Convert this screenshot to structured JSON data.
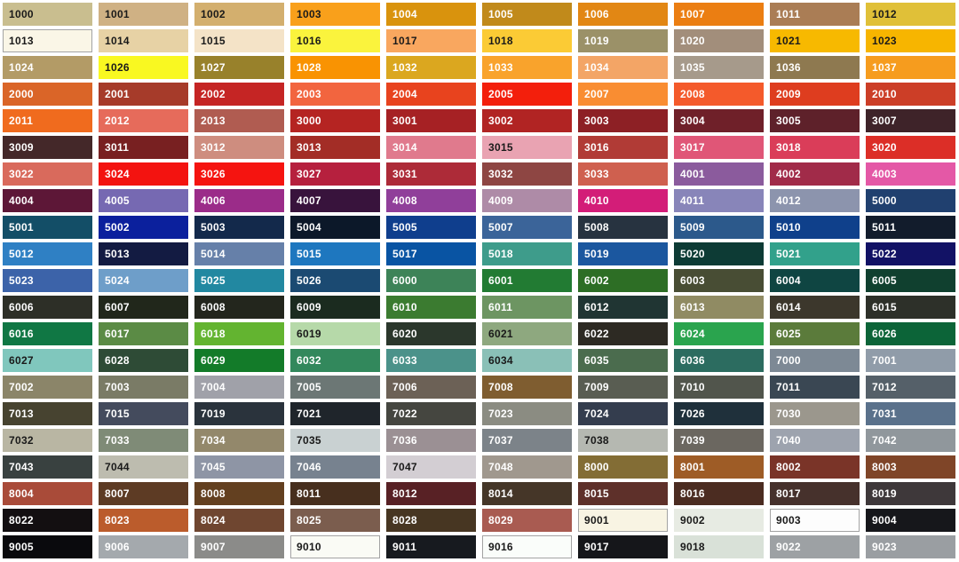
{
  "page": {
    "title": "RAL classic colour chart",
    "background": "#ffffff",
    "text_dark": "#1a1a1a",
    "text_light": "#ffffff",
    "light_swatch_border": "#a3a3a3"
  },
  "chart_data": {
    "type": "table",
    "title": "RAL classic colour swatch grid",
    "columns": 10,
    "rows": 21
  },
  "swatches": [
    {
      "code": "1000",
      "bg": "#C9BE8F",
      "text": "dark"
    },
    {
      "code": "1001",
      "bg": "#CFB184",
      "text": "dark"
    },
    {
      "code": "1002",
      "bg": "#D3AF6E",
      "text": "dark"
    },
    {
      "code": "1003",
      "bg": "#F9A01B",
      "text": "dark"
    },
    {
      "code": "1004",
      "bg": "#D9930D",
      "text": "light"
    },
    {
      "code": "1005",
      "bg": "#C18A1B",
      "text": "light"
    },
    {
      "code": "1006",
      "bg": "#E28714",
      "text": "light"
    },
    {
      "code": "1007",
      "bg": "#EB7E12",
      "text": "light"
    },
    {
      "code": "1011",
      "bg": "#AA7D55",
      "text": "light"
    },
    {
      "code": "1012",
      "bg": "#E0C038",
      "text": "dark"
    },
    {
      "code": "1013",
      "bg": "#FAF6E7",
      "text": "dark",
      "border": true
    },
    {
      "code": "1014",
      "bg": "#E7D2A5",
      "text": "dark"
    },
    {
      "code": "1015",
      "bg": "#F4E3C7",
      "text": "dark"
    },
    {
      "code": "1016",
      "bg": "#FAF33D",
      "text": "dark"
    },
    {
      "code": "1017",
      "bg": "#F9A75F",
      "text": "dark"
    },
    {
      "code": "1018",
      "bg": "#FBCB35",
      "text": "dark"
    },
    {
      "code": "1019",
      "bg": "#9B9168",
      "text": "light"
    },
    {
      "code": "1020",
      "bg": "#A28E7B",
      "text": "light"
    },
    {
      "code": "1021",
      "bg": "#F7B900",
      "text": "dark"
    },
    {
      "code": "1023",
      "bg": "#F7B500",
      "text": "dark"
    },
    {
      "code": "1024",
      "bg": "#B39B66",
      "text": "light"
    },
    {
      "code": "1026",
      "bg": "#F9F821",
      "text": "dark"
    },
    {
      "code": "1027",
      "bg": "#98812B",
      "text": "light"
    },
    {
      "code": "1028",
      "bg": "#F99302",
      "text": "light"
    },
    {
      "code": "1032",
      "bg": "#DBA71F",
      "text": "light"
    },
    {
      "code": "1033",
      "bg": "#F9A32C",
      "text": "light"
    },
    {
      "code": "1034",
      "bg": "#F3A566",
      "text": "light"
    },
    {
      "code": "1035",
      "bg": "#A69A8B",
      "text": "light"
    },
    {
      "code": "1036",
      "bg": "#8E7950",
      "text": "light"
    },
    {
      "code": "1037",
      "bg": "#F69C1E",
      "text": "light"
    },
    {
      "code": "2000",
      "bg": "#DA6528",
      "text": "light"
    },
    {
      "code": "2001",
      "bg": "#A63B2A",
      "text": "light"
    },
    {
      "code": "2002",
      "bg": "#C52524",
      "text": "light"
    },
    {
      "code": "2003",
      "bg": "#F2653F",
      "text": "light"
    },
    {
      "code": "2004",
      "bg": "#E8431E",
      "text": "light"
    },
    {
      "code": "2005",
      "bg": "#F31F0C",
      "text": "light"
    },
    {
      "code": "2007",
      "bg": "#F98D32",
      "text": "light"
    },
    {
      "code": "2008",
      "bg": "#F45A2B",
      "text": "light"
    },
    {
      "code": "2009",
      "bg": "#DE3D1F",
      "text": "light"
    },
    {
      "code": "2010",
      "bg": "#CC3E27",
      "text": "light"
    },
    {
      "code": "2011",
      "bg": "#F06B1E",
      "text": "light"
    },
    {
      "code": "2012",
      "bg": "#E66B5B",
      "text": "light"
    },
    {
      "code": "2013",
      "bg": "#B05C51",
      "text": "light"
    },
    {
      "code": "3000",
      "bg": "#B52422",
      "text": "light"
    },
    {
      "code": "3001",
      "bg": "#A62124",
      "text": "light"
    },
    {
      "code": "3002",
      "bg": "#B12423",
      "text": "light"
    },
    {
      "code": "3003",
      "bg": "#8D2025",
      "text": "light"
    },
    {
      "code": "3004",
      "bg": "#6F2029",
      "text": "light"
    },
    {
      "code": "3005",
      "bg": "#5E212A",
      "text": "light"
    },
    {
      "code": "3007",
      "bg": "#3E2329",
      "text": "light"
    },
    {
      "code": "3009",
      "bg": "#442829",
      "text": "light"
    },
    {
      "code": "3011",
      "bg": "#782021",
      "text": "light"
    },
    {
      "code": "3012",
      "bg": "#CE8D7F",
      "text": "light"
    },
    {
      "code": "3013",
      "bg": "#A32D26",
      "text": "light"
    },
    {
      "code": "3014",
      "bg": "#E07A8D",
      "text": "light"
    },
    {
      "code": "3015",
      "bg": "#E9A3B2",
      "text": "dark"
    },
    {
      "code": "3016",
      "bg": "#B13B36",
      "text": "light"
    },
    {
      "code": "3017",
      "bg": "#E05677",
      "text": "light"
    },
    {
      "code": "3018",
      "bg": "#DA3D59",
      "text": "light"
    },
    {
      "code": "3020",
      "bg": "#DC2E27",
      "text": "light"
    },
    {
      "code": "3022",
      "bg": "#D96A5C",
      "text": "light"
    },
    {
      "code": "3024",
      "bg": "#F31310",
      "text": "light"
    },
    {
      "code": "3026",
      "bg": "#F51410",
      "text": "light"
    },
    {
      "code": "3027",
      "bg": "#B6203E",
      "text": "light"
    },
    {
      "code": "3031",
      "bg": "#AD2B38",
      "text": "light"
    },
    {
      "code": "3032",
      "bg": "#8E4643",
      "text": "light"
    },
    {
      "code": "3033",
      "bg": "#CF604F",
      "text": "light"
    },
    {
      "code": "4001",
      "bg": "#8B5B9D",
      "text": "light"
    },
    {
      "code": "4002",
      "bg": "#A12B49",
      "text": "light"
    },
    {
      "code": "4003",
      "bg": "#E458A6",
      "text": "light"
    },
    {
      "code": "4004",
      "bg": "#5D1737",
      "text": "light"
    },
    {
      "code": "4005",
      "bg": "#7669B2",
      "text": "light"
    },
    {
      "code": "4006",
      "bg": "#9B2C89",
      "text": "light"
    },
    {
      "code": "4007",
      "bg": "#38133C",
      "text": "light"
    },
    {
      "code": "4008",
      "bg": "#903F9A",
      "text": "light"
    },
    {
      "code": "4009",
      "bg": "#AE8BA7",
      "text": "light"
    },
    {
      "code": "4010",
      "bg": "#D31D78",
      "text": "light"
    },
    {
      "code": "4011",
      "bg": "#8885B9",
      "text": "light"
    },
    {
      "code": "4012",
      "bg": "#8C94AD",
      "text": "light"
    },
    {
      "code": "5000",
      "bg": "#20406F",
      "text": "light"
    },
    {
      "code": "5001",
      "bg": "#134E67",
      "text": "light"
    },
    {
      "code": "5002",
      "bg": "#0B209D",
      "text": "light"
    },
    {
      "code": "5003",
      "bg": "#13294B",
      "text": "light"
    },
    {
      "code": "5004",
      "bg": "#0C1829",
      "text": "light"
    },
    {
      "code": "5005",
      "bg": "#0F3E8D",
      "text": "light"
    },
    {
      "code": "5007",
      "bg": "#3B6499",
      "text": "light"
    },
    {
      "code": "5008",
      "bg": "#273340",
      "text": "light"
    },
    {
      "code": "5009",
      "bg": "#2C598B",
      "text": "light"
    },
    {
      "code": "5010",
      "bg": "#0F408B",
      "text": "light"
    },
    {
      "code": "5011",
      "bg": "#121C2C",
      "text": "light"
    },
    {
      "code": "5012",
      "bg": "#2F80C4",
      "text": "light"
    },
    {
      "code": "5013",
      "bg": "#131B42",
      "text": "light"
    },
    {
      "code": "5014",
      "bg": "#6680A9",
      "text": "light"
    },
    {
      "code": "5015",
      "bg": "#1E77BF",
      "text": "light"
    },
    {
      "code": "5017",
      "bg": "#0954A3",
      "text": "light"
    },
    {
      "code": "5018",
      "bg": "#3E9C8B",
      "text": "light"
    },
    {
      "code": "5019",
      "bg": "#1B579F",
      "text": "light"
    },
    {
      "code": "5020",
      "bg": "#0D3B35",
      "text": "light"
    },
    {
      "code": "5021",
      "bg": "#32A18B",
      "text": "light"
    },
    {
      "code": "5022",
      "bg": "#121265",
      "text": "light"
    },
    {
      "code": "5023",
      "bg": "#3C63A9",
      "text": "light"
    },
    {
      "code": "5024",
      "bg": "#6E9EC9",
      "text": "light"
    },
    {
      "code": "5025",
      "bg": "#2288A1",
      "text": "light"
    },
    {
      "code": "5026",
      "bg": "#1B4A72",
      "text": "light"
    },
    {
      "code": "6000",
      "bg": "#3D8358",
      "text": "light"
    },
    {
      "code": "6001",
      "bg": "#227B33",
      "text": "light"
    },
    {
      "code": "6002",
      "bg": "#2D6E25",
      "text": "light"
    },
    {
      "code": "6003",
      "bg": "#484D34",
      "text": "light"
    },
    {
      "code": "6004",
      "bg": "#0F4542",
      "text": "light"
    },
    {
      "code": "6005",
      "bg": "#10402F",
      "text": "light"
    },
    {
      "code": "6006",
      "bg": "#2D2F27",
      "text": "light"
    },
    {
      "code": "6007",
      "bg": "#21271B",
      "text": "light"
    },
    {
      "code": "6008",
      "bg": "#23261D",
      "text": "light"
    },
    {
      "code": "6009",
      "bg": "#1B2B1F",
      "text": "light"
    },
    {
      "code": "6010",
      "bg": "#3B7B30",
      "text": "light"
    },
    {
      "code": "6011",
      "bg": "#6D9562",
      "text": "light"
    },
    {
      "code": "6012",
      "bg": "#203533",
      "text": "light"
    },
    {
      "code": "6013",
      "bg": "#908B63",
      "text": "light"
    },
    {
      "code": "6014",
      "bg": "#3C372C",
      "text": "light"
    },
    {
      "code": "6015",
      "bg": "#2D3029",
      "text": "light"
    },
    {
      "code": "6016",
      "bg": "#107744",
      "text": "light"
    },
    {
      "code": "6017",
      "bg": "#5B8B45",
      "text": "light"
    },
    {
      "code": "6018",
      "bg": "#63B430",
      "text": "light"
    },
    {
      "code": "6019",
      "bg": "#B6D9A9",
      "text": "dark"
    },
    {
      "code": "6020",
      "bg": "#2B372C",
      "text": "light"
    },
    {
      "code": "6021",
      "bg": "#8EA87F",
      "text": "dark"
    },
    {
      "code": "6022",
      "bg": "#2D2A23",
      "text": "light"
    },
    {
      "code": "6024",
      "bg": "#2AA44E",
      "text": "light"
    },
    {
      "code": "6025",
      "bg": "#5B7B3B",
      "text": "light"
    },
    {
      "code": "6026",
      "bg": "#0C6438",
      "text": "light"
    },
    {
      "code": "6027",
      "bg": "#80C7BD",
      "text": "dark"
    },
    {
      "code": "6028",
      "bg": "#2E4B36",
      "text": "light"
    },
    {
      "code": "6029",
      "bg": "#137B29",
      "text": "light"
    },
    {
      "code": "6032",
      "bg": "#32885C",
      "text": "light"
    },
    {
      "code": "6033",
      "bg": "#4B928A",
      "text": "light"
    },
    {
      "code": "6034",
      "bg": "#8AC0B7",
      "text": "dark"
    },
    {
      "code": "6035",
      "bg": "#4B6C4E",
      "text": "light"
    },
    {
      "code": "6036",
      "bg": "#2C6C60",
      "text": "light"
    },
    {
      "code": "7000",
      "bg": "#7D8995",
      "text": "light"
    },
    {
      "code": "7001",
      "bg": "#909CA9",
      "text": "light"
    },
    {
      "code": "7002",
      "bg": "#8B8569",
      "text": "light"
    },
    {
      "code": "7003",
      "bg": "#7A7B66",
      "text": "light"
    },
    {
      "code": "7004",
      "bg": "#A0A1A9",
      "text": "light"
    },
    {
      "code": "7005",
      "bg": "#6C7775",
      "text": "light"
    },
    {
      "code": "7006",
      "bg": "#6C6156",
      "text": "light"
    },
    {
      "code": "7008",
      "bg": "#7F5D30",
      "text": "light"
    },
    {
      "code": "7009",
      "bg": "#595D52",
      "text": "light"
    },
    {
      "code": "7010",
      "bg": "#51554C",
      "text": "light"
    },
    {
      "code": "7011",
      "bg": "#3A4753",
      "text": "light"
    },
    {
      "code": "7012",
      "bg": "#556069",
      "text": "light"
    },
    {
      "code": "7013",
      "bg": "#474330",
      "text": "light"
    },
    {
      "code": "7015",
      "bg": "#444B5D",
      "text": "light"
    },
    {
      "code": "7019",
      "bg": "#2A333C",
      "text": "light"
    },
    {
      "code": "7021",
      "bg": "#1F252B",
      "text": "light"
    },
    {
      "code": "7022",
      "bg": "#454640",
      "text": "light"
    },
    {
      "code": "7023",
      "bg": "#8B8C82",
      "text": "light"
    },
    {
      "code": "7024",
      "bg": "#343D4E",
      "text": "light"
    },
    {
      "code": "7026",
      "bg": "#1F303B",
      "text": "light"
    },
    {
      "code": "7030",
      "bg": "#9B978D",
      "text": "light"
    },
    {
      "code": "7031",
      "bg": "#5A718B",
      "text": "light"
    },
    {
      "code": "7032",
      "bg": "#B9B6A3",
      "text": "dark"
    },
    {
      "code": "7033",
      "bg": "#7F8B77",
      "text": "light"
    },
    {
      "code": "7034",
      "bg": "#93886B",
      "text": "light"
    },
    {
      "code": "7035",
      "bg": "#C9D1D2",
      "text": "dark"
    },
    {
      "code": "7036",
      "bg": "#9B9094",
      "text": "light"
    },
    {
      "code": "7037",
      "bg": "#7C8389",
      "text": "light"
    },
    {
      "code": "7038",
      "bg": "#B5B8B1",
      "text": "dark"
    },
    {
      "code": "7039",
      "bg": "#6B6760",
      "text": "light"
    },
    {
      "code": "7040",
      "bg": "#9DA3AE",
      "text": "light"
    },
    {
      "code": "7042",
      "bg": "#90979C",
      "text": "light"
    },
    {
      "code": "7043",
      "bg": "#394140",
      "text": "light"
    },
    {
      "code": "7044",
      "bg": "#BDBCAF",
      "text": "dark"
    },
    {
      "code": "7045",
      "bg": "#8E95A5",
      "text": "light"
    },
    {
      "code": "7046",
      "bg": "#77828F",
      "text": "light"
    },
    {
      "code": "7047",
      "bg": "#D3CED3",
      "text": "dark"
    },
    {
      "code": "7048",
      "bg": "#A0988E",
      "text": "light"
    },
    {
      "code": "8000",
      "bg": "#836D35",
      "text": "light"
    },
    {
      "code": "8001",
      "bg": "#9E5C26",
      "text": "light"
    },
    {
      "code": "8002",
      "bg": "#7A3428",
      "text": "light"
    },
    {
      "code": "8003",
      "bg": "#7F4528",
      "text": "light"
    },
    {
      "code": "8004",
      "bg": "#A94B39",
      "text": "light"
    },
    {
      "code": "8007",
      "bg": "#5D3B24",
      "text": "light"
    },
    {
      "code": "8008",
      "bg": "#634020",
      "text": "light"
    },
    {
      "code": "8011",
      "bg": "#472F1E",
      "text": "light"
    },
    {
      "code": "8012",
      "bg": "#582125",
      "text": "light"
    },
    {
      "code": "8014",
      "bg": "#453628",
      "text": "light"
    },
    {
      "code": "8015",
      "bg": "#5E302A",
      "text": "light"
    },
    {
      "code": "8016",
      "bg": "#4B2C21",
      "text": "light"
    },
    {
      "code": "8017",
      "bg": "#46312C",
      "text": "light"
    },
    {
      "code": "8019",
      "bg": "#3E383A",
      "text": "light"
    },
    {
      "code": "8022",
      "bg": "#130F11",
      "text": "light"
    },
    {
      "code": "8023",
      "bg": "#BB5C2C",
      "text": "light"
    },
    {
      "code": "8024",
      "bg": "#6F4630",
      "text": "light"
    },
    {
      "code": "8025",
      "bg": "#7B5D4E",
      "text": "light"
    },
    {
      "code": "8028",
      "bg": "#473622",
      "text": "light"
    },
    {
      "code": "8029",
      "bg": "#A95B51",
      "text": "light"
    },
    {
      "code": "9001",
      "bg": "#F8F4E3",
      "text": "dark",
      "border": true
    },
    {
      "code": "9002",
      "bg": "#E7EBE3",
      "text": "dark"
    },
    {
      "code": "9003",
      "bg": "#FDFDFD",
      "text": "dark",
      "border": true
    },
    {
      "code": "9004",
      "bg": "#16171B",
      "text": "light"
    },
    {
      "code": "9005",
      "bg": "#0A0A0D",
      "text": "light"
    },
    {
      "code": "9006",
      "bg": "#A4A9AD",
      "text": "light"
    },
    {
      "code": "9007",
      "bg": "#8B8B89",
      "text": "light"
    },
    {
      "code": "9010",
      "bg": "#FAFBF5",
      "text": "dark",
      "border": true
    },
    {
      "code": "9011",
      "bg": "#171A1F",
      "text": "light"
    },
    {
      "code": "9016",
      "bg": "#FAFDFA",
      "text": "dark",
      "border": true
    },
    {
      "code": "9017",
      "bg": "#15161A",
      "text": "light"
    },
    {
      "code": "9018",
      "bg": "#D9E1D8",
      "text": "dark"
    },
    {
      "code": "9022",
      "bg": "#9DA1A4",
      "text": "light"
    },
    {
      "code": "9023",
      "bg": "#9A9EA2",
      "text": "light"
    }
  ]
}
